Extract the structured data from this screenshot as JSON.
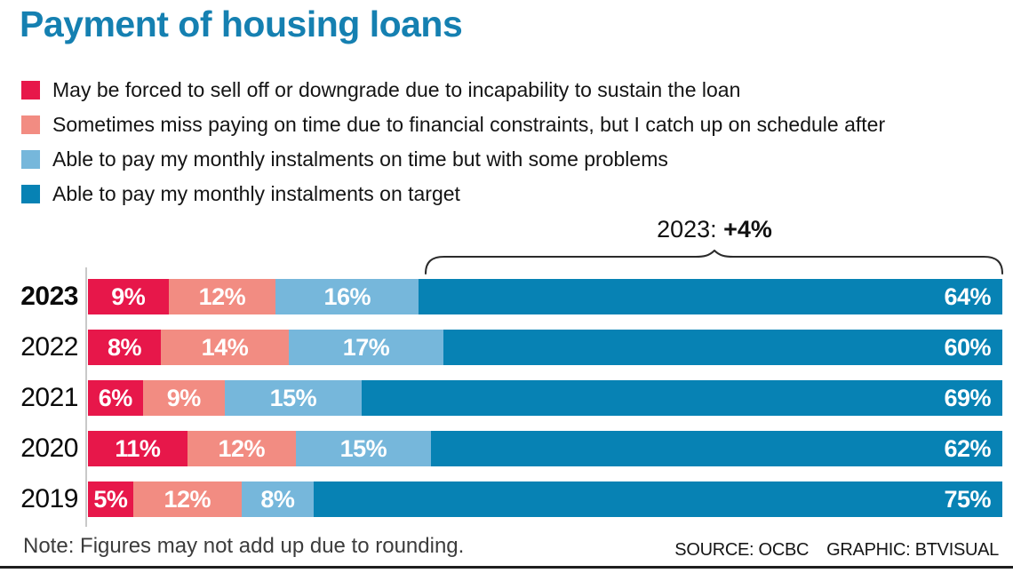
{
  "title": "Payment of housing loans",
  "title_color": "#1580B1",
  "legend": {
    "items": [
      {
        "label": "May be forced to sell off or downgrade due to incapability to sustain the loan",
        "color": "#E7174A"
      },
      {
        "label": "Sometimes miss paying on time due to financial constraints, but I catch up on schedule after",
        "color": "#F28C82"
      },
      {
        "label": "Able to pay my monthly instalments on time but with some problems",
        "color": "#76B7DB"
      },
      {
        "label": "Able to pay my monthly instalments on target",
        "color": "#0782B4"
      }
    ]
  },
  "annotation": {
    "prefix": "2023: ",
    "value": "+4%"
  },
  "chart_data": {
    "type": "bar",
    "orientation": "horizontal",
    "stacked": true,
    "title": "Payment of housing loans",
    "categories": [
      "2023",
      "2022",
      "2021",
      "2020",
      "2019"
    ],
    "series": [
      {
        "name": "May be forced to sell off or downgrade due to incapability to sustain the loan",
        "color": "#E7174A",
        "values": [
          9,
          8,
          6,
          11,
          5
        ]
      },
      {
        "name": "Sometimes miss paying on time due to financial constraints, but I catch up on schedule after",
        "color": "#F28C82",
        "values": [
          12,
          14,
          9,
          12,
          12
        ]
      },
      {
        "name": "Able to pay my monthly instalments on time but with some problems",
        "color": "#76B7DB",
        "values": [
          16,
          17,
          15,
          15,
          8
        ]
      },
      {
        "name": "Able to pay my monthly instalments on target",
        "color": "#0782B4",
        "values": [
          64,
          60,
          69,
          62,
          75
        ]
      }
    ],
    "value_suffix": "%",
    "highlighted_category": "2023",
    "annotation": "2023: +4%",
    "legend_position": "top",
    "grid": false
  },
  "footer": {
    "note": "Note: Figures may not add up due to rounding.",
    "source": "SOURCE: OCBC",
    "graphic": "GRAPHIC: BTVISUAL"
  }
}
